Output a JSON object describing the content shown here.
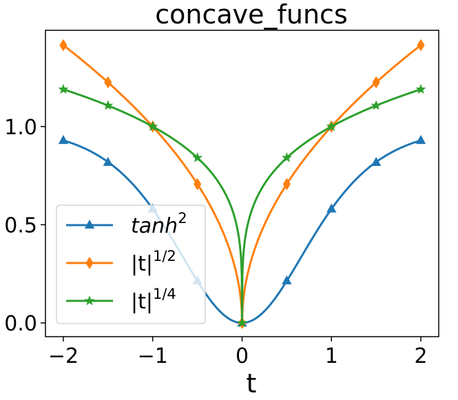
{
  "chart_data": {
    "type": "line",
    "title": "concave_funcs",
    "xlabel": "t",
    "ylabel": "",
    "xlim": [
      -2.2,
      2.2
    ],
    "ylim": [
      -0.07,
      1.49
    ],
    "xticks": [
      -2,
      -1,
      0,
      1,
      2
    ],
    "xtick_labels": [
      "−2",
      "−1",
      "0",
      "1",
      "2"
    ],
    "yticks": [
      0.0,
      0.5,
      1.0
    ],
    "ytick_labels": [
      "0.0",
      "0.5",
      "1.0"
    ],
    "grid": false,
    "legend_position": "lower-left",
    "series": [
      {
        "name": "tanh",
        "name_sup": "2",
        "func": "tanh2",
        "color": "#1f77b4",
        "marker": "triangle",
        "marker_x": [
          -2,
          -1.5,
          -1,
          -0.5,
          0,
          0.5,
          1,
          1.5,
          2
        ],
        "marker_y": [
          0.929,
          0.817,
          0.58,
          0.214,
          0.0,
          0.214,
          0.58,
          0.817,
          0.929
        ]
      },
      {
        "name": "|t|",
        "name_sup": "1/2",
        "func": "sqrt_abs",
        "color": "#ff7f0e",
        "marker": "diamond",
        "marker_x": [
          -2,
          -1.5,
          -1,
          -0.5,
          0,
          0.5,
          1,
          1.5,
          2
        ],
        "marker_y": [
          1.414,
          1.225,
          1.0,
          0.707,
          0.0,
          0.707,
          1.0,
          1.225,
          1.414
        ]
      },
      {
        "name": "|t|",
        "name_sup": "1/4",
        "func": "fourth_root_abs",
        "color": "#2ca02c",
        "marker": "star",
        "marker_x": [
          -2,
          -1.5,
          -1,
          -0.5,
          0,
          0.5,
          1,
          1.5,
          2
        ],
        "marker_y": [
          1.189,
          1.107,
          1.0,
          0.841,
          0.0,
          0.841,
          1.0,
          1.107,
          1.189
        ]
      }
    ]
  }
}
